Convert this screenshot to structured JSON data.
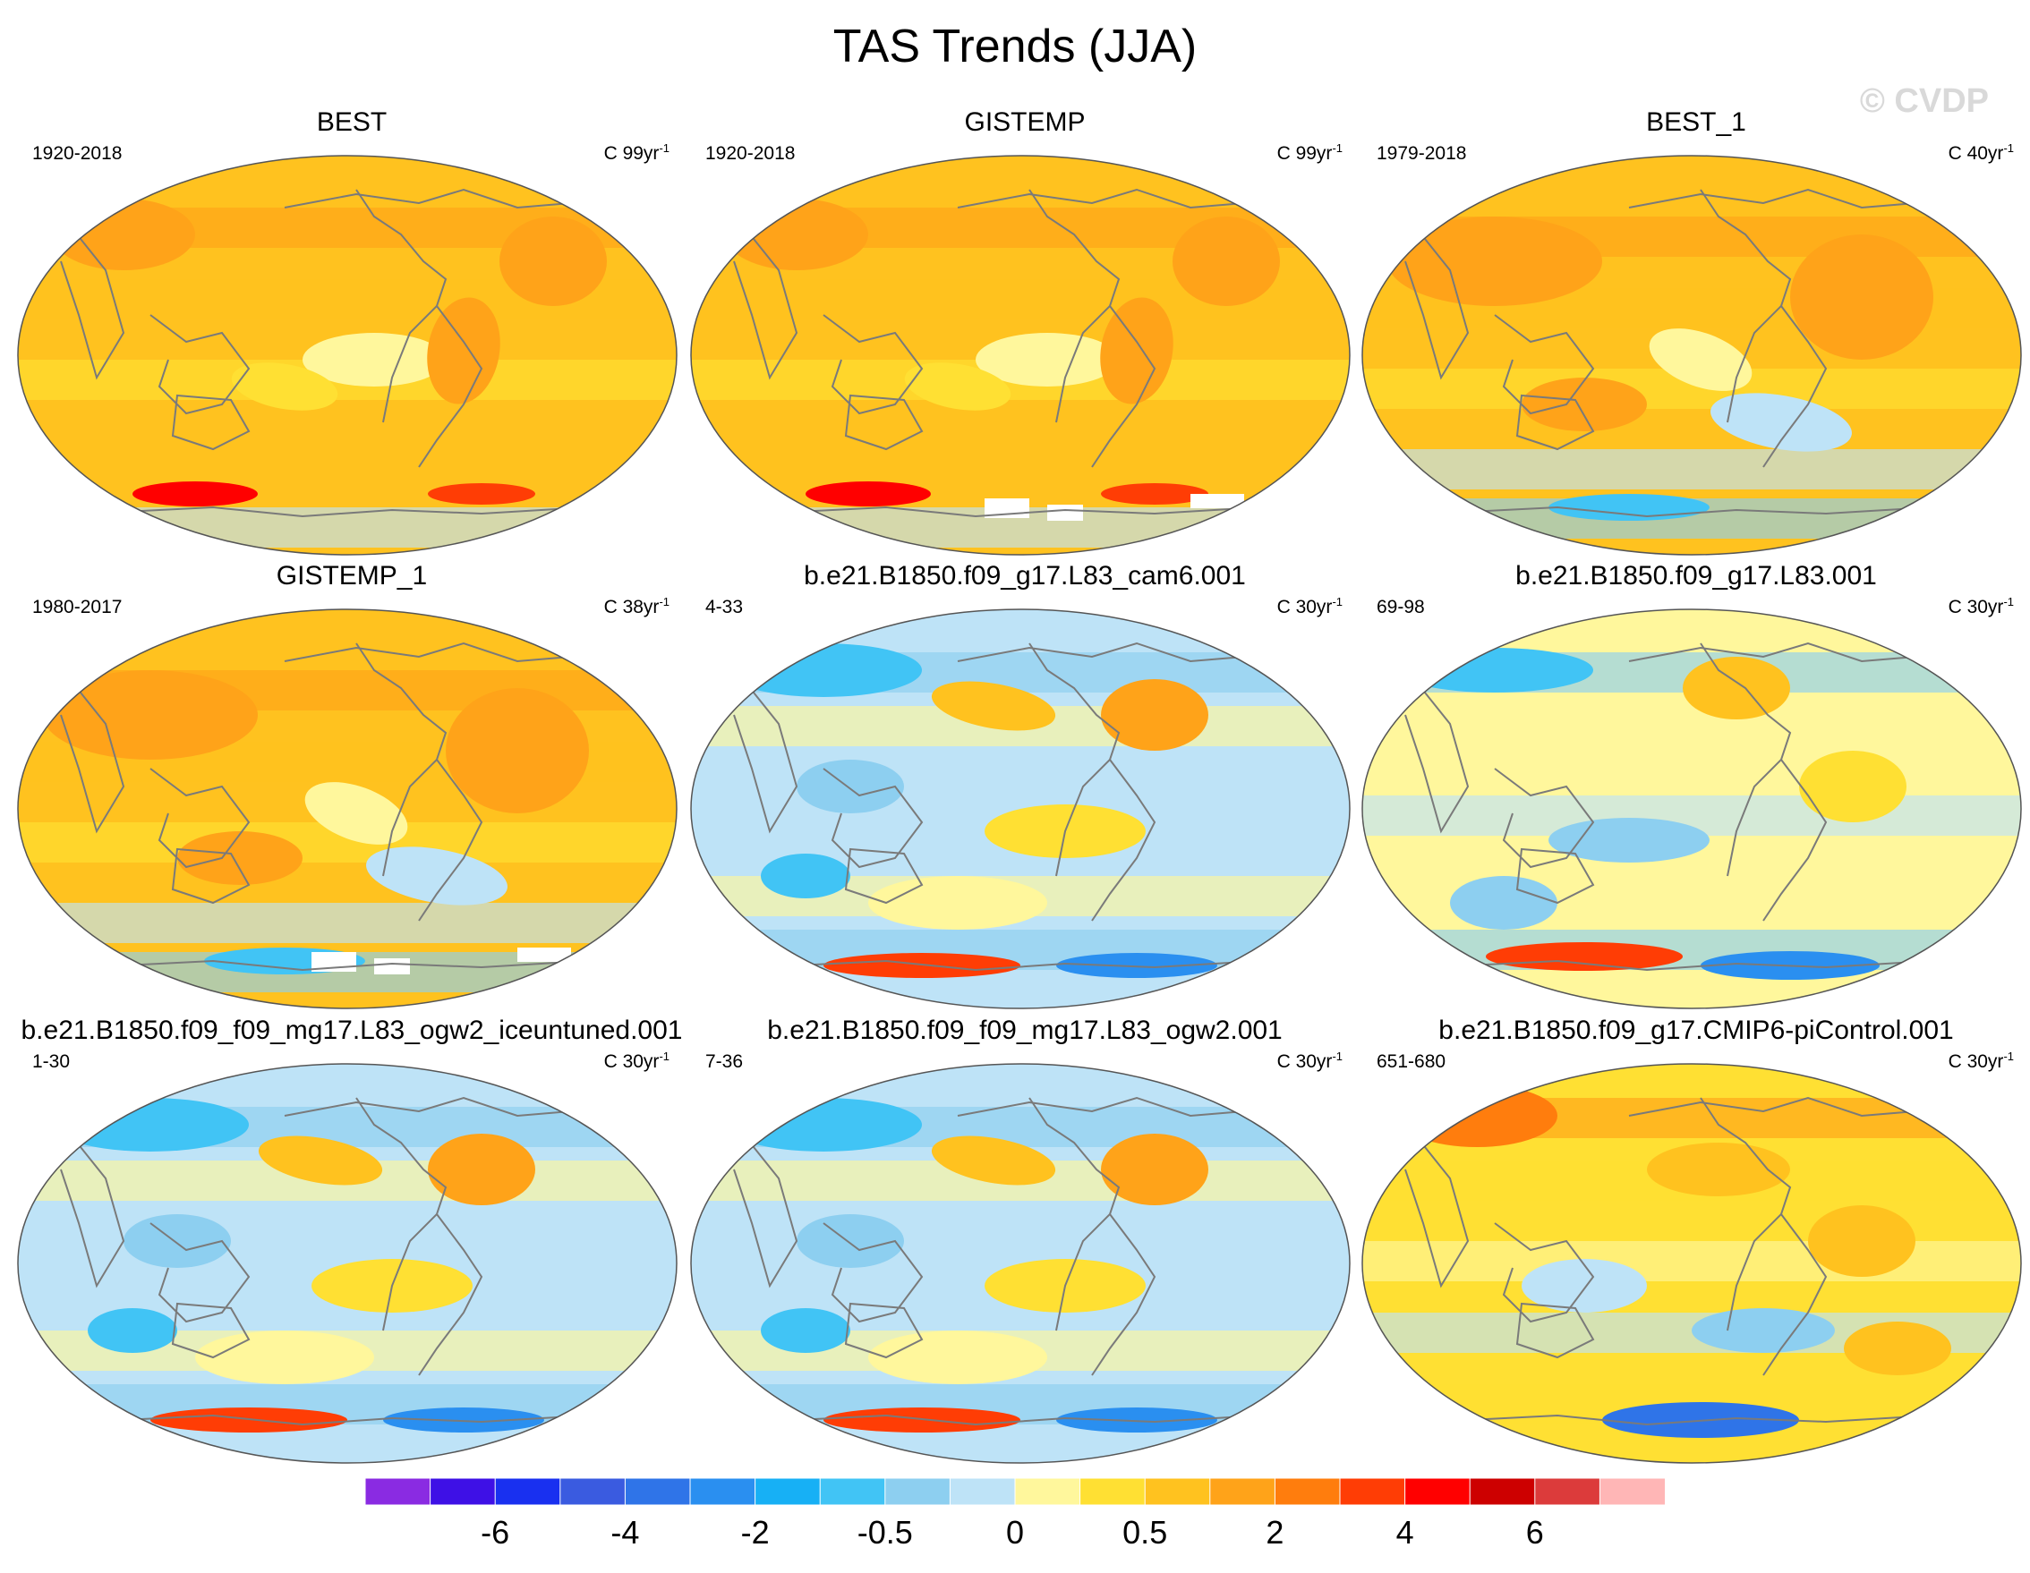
{
  "title": "TAS Trends (JJA)",
  "watermark": "© CVDP",
  "units_prefix": "C",
  "units_suffix": "yr",
  "units_exp": "-1",
  "panels": [
    {
      "title": "BEST",
      "left": "1920-2018",
      "right_num": "99",
      "style": "obs_warm",
      "missing": false
    },
    {
      "title": "GISTEMP",
      "left": "1920-2018",
      "right_num": "99",
      "style": "obs_warm",
      "missing": true
    },
    {
      "title": "BEST_1",
      "left": "1979-2018",
      "right_num": "40",
      "style": "obs_recent",
      "missing": false
    },
    {
      "title": "GISTEMP_1",
      "left": "1980-2017",
      "right_num": "38",
      "style": "obs_recent",
      "missing": true
    },
    {
      "title": "b.e21.B1850.f09_g17.L83_cam6.001",
      "left": "4-33",
      "right_num": "30",
      "style": "model_cool",
      "missing": false
    },
    {
      "title": "b.e21.B1850.f09_g17.L83.001",
      "left": "69-98",
      "right_num": "30",
      "style": "model_mixed",
      "missing": false
    },
    {
      "title": "b.e21.B1850.f09_f09_mg17.L83_ogw2_iceuntuned.001",
      "left": "1-30",
      "right_num": "30",
      "style": "model_cool",
      "missing": false
    },
    {
      "title": "b.e21.B1850.f09_f09_mg17.L83_ogw2.001",
      "left": "7-36",
      "right_num": "30",
      "style": "model_cool",
      "missing": false
    },
    {
      "title": "b.e21.B1850.f09_g17.CMIP6-piControl.001",
      "left": "651-680",
      "right_num": "30",
      "style": "model_warm",
      "missing": false
    }
  ],
  "colorbar": {
    "colors": [
      "#8a2be2",
      "#3e10e6",
      "#1930f0",
      "#3a5be0",
      "#2f74e8",
      "#2a8ff0",
      "#17b0f5",
      "#41c4f5",
      "#8dcff0",
      "#bee3f7",
      "#fff79c",
      "#ffe033",
      "#ffc21f",
      "#ffa319",
      "#ff7d0d",
      "#ff3d05",
      "#ff0000",
      "#cd0000",
      "#dc3b3b",
      "#ffb6b6"
    ],
    "tick_labels": [
      "-6",
      "-4",
      "-2",
      "-0.5",
      "0",
      "0.5",
      "2",
      "4",
      "6"
    ]
  }
}
